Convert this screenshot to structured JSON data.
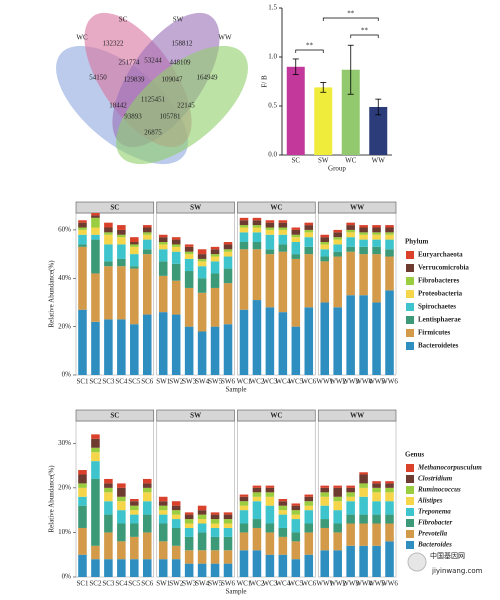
{
  "chart_data": [
    {
      "type": "venn",
      "sets": [
        {
          "name": "WC",
          "color": "#8fa9dd"
        },
        {
          "name": "SC",
          "color": "#d9739e"
        },
        {
          "name": "SW",
          "color": "#9a6fb8"
        },
        {
          "name": "WW",
          "color": "#8fcf6a"
        }
      ],
      "regions": [
        132322,
        158812,
        54150,
        251774,
        53244,
        448109,
        164949,
        129839,
        109047,
        18442,
        1125451,
        22145,
        93893,
        105781,
        26875
      ]
    },
    {
      "type": "bar",
      "categories": [
        "SC",
        "SW",
        "WC",
        "WW"
      ],
      "values": [
        0.9,
        0.69,
        0.87,
        0.49
      ],
      "errors": [
        0.08,
        0.05,
        0.25,
        0.08
      ],
      "colors": [
        "#c2399b",
        "#f0ec3c",
        "#92c86e",
        "#2c3b7a"
      ],
      "ylabel": "F/ B",
      "xlabel": "Group",
      "ylim": [
        0,
        1.5
      ],
      "yticks": [
        {
          "value": 0,
          "label": "0.0"
        },
        {
          "value": 0.5,
          "label": "0.5"
        },
        {
          "value": 1,
          "label": "1.0"
        },
        {
          "value": 1.5,
          "label": "1.5"
        }
      ],
      "annotations": [
        {
          "text": "**",
          "between": [
            0,
            1
          ]
        },
        {
          "text": "**",
          "between": [
            2,
            3
          ]
        },
        {
          "text": "**",
          "between": [
            1,
            3
          ]
        }
      ]
    },
    {
      "type": "stacked_bar",
      "ylabel": "Relative Abundance(%)",
      "xlabel": "Sample",
      "legend_title": "Phylum",
      "italic_legend": false,
      "facets": [
        {
          "title": "SC",
          "categories": [
            "SC1",
            "SC2",
            "SC3",
            "SC4",
            "SC5",
            "SC6"
          ]
        },
        {
          "title": "SW",
          "categories": [
            "SW1",
            "SW2",
            "SW3",
            "SW4",
            "SW5",
            "SW6"
          ]
        },
        {
          "title": "WC",
          "categories": [
            "WC1",
            "WC2",
            "WC3",
            "WC4",
            "WC5",
            "WC6"
          ]
        },
        {
          "title": "WW",
          "categories": [
            "WW1",
            "WW2",
            "WW3",
            "WW4",
            "WW5",
            "WW6"
          ]
        }
      ],
      "ylim": [
        0,
        67
      ],
      "yticks": [
        {
          "value": 0,
          "label": "0%"
        },
        {
          "value": 20,
          "label": "20%"
        },
        {
          "value": 40,
          "label": "40%"
        },
        {
          "value": 60,
          "label": "60%"
        }
      ],
      "series": [
        {
          "name": "Euryarchaeota",
          "color": "#d9412b",
          "values": [
            1,
            1,
            2,
            2,
            2,
            1,
            1,
            1,
            1,
            2,
            1,
            1,
            1,
            1,
            1,
            1,
            1,
            1,
            1,
            1,
            1,
            1,
            1,
            1
          ]
        },
        {
          "name": "Verrucomicrobia",
          "color": "#6e3b30",
          "values": [
            2,
            1,
            2,
            2,
            1,
            2,
            2,
            2,
            2,
            2,
            2,
            2,
            2,
            2,
            2,
            2,
            2,
            2,
            2,
            2,
            2,
            2,
            2,
            2
          ]
        },
        {
          "name": "Fibrobacteres",
          "color": "#9acd3f",
          "values": [
            1,
            4,
            1,
            1,
            1,
            1,
            1,
            1,
            1,
            1,
            1,
            1,
            1,
            1,
            1,
            1,
            1,
            1,
            1,
            1,
            1,
            1,
            1,
            1
          ]
        },
        {
          "name": "Proteobacteria",
          "color": "#f5d54a",
          "values": [
            2,
            3,
            4,
            3,
            3,
            2,
            2,
            2,
            2,
            2,
            2,
            2,
            2,
            2,
            2,
            2,
            2,
            2,
            2,
            2,
            2,
            2,
            2,
            2
          ]
        },
        {
          "name": "Spirochaetes",
          "color": "#3ec4cc",
          "values": [
            4,
            2,
            7,
            6,
            5,
            4,
            5,
            5,
            5,
            5,
            5,
            5,
            4,
            4,
            6,
            4,
            5,
            4,
            3,
            3,
            4,
            3,
            3,
            4
          ]
        },
        {
          "name": "Lentisphaerae",
          "color": "#3d9a78",
          "values": [
            1,
            14,
            2,
            3,
            1,
            2,
            6,
            7,
            7,
            6,
            6,
            6,
            3,
            3,
            2,
            3,
            2,
            3,
            2,
            2,
            2,
            3,
            3,
            3
          ]
        },
        {
          "name": "Firmicutes",
          "color": "#d39a4a",
          "values": [
            26,
            20,
            22,
            22,
            23,
            25,
            15,
            14,
            16,
            16,
            16,
            17,
            25,
            21,
            22,
            25,
            28,
            22,
            17,
            21,
            18,
            17,
            20,
            14
          ]
        },
        {
          "name": "Bacteroidetes",
          "color": "#2f8ec0",
          "values": [
            27,
            22,
            23,
            23,
            21,
            25,
            26,
            25,
            20,
            18,
            20,
            21,
            27,
            31,
            28,
            26,
            20,
            28,
            30,
            28,
            33,
            33,
            30,
            35
          ]
        }
      ]
    },
    {
      "type": "stacked_bar",
      "ylabel": "Relative Abundance(%)",
      "xlabel": "Sample",
      "legend_title": "Genus",
      "italic_legend": true,
      "facets": [
        {
          "title": "SC",
          "categories": [
            "SC1",
            "SC2",
            "SC3",
            "SC4",
            "SC5",
            "SC6"
          ]
        },
        {
          "title": "SW",
          "categories": [
            "SW1",
            "SW2",
            "SW3",
            "SW4",
            "SW5",
            "SW6"
          ]
        },
        {
          "title": "WC",
          "categories": [
            "WC1",
            "WC2",
            "WC3",
            "WC4",
            "WC5",
            "WC6"
          ]
        },
        {
          "title": "WW",
          "categories": [
            "WW1",
            "WW2",
            "WW3",
            "WW4",
            "WW5",
            "WW6"
          ]
        }
      ],
      "ylim": [
        0,
        35
      ],
      "yticks": [
        {
          "value": 0,
          "label": "0%"
        },
        {
          "value": 10,
          "label": "10%"
        },
        {
          "value": 20,
          "label": "20%"
        },
        {
          "value": 30,
          "label": "30%"
        }
      ],
      "series": [
        {
          "name": "Methanocorpusculum",
          "color": "#d9412b",
          "values": [
            1,
            1,
            1,
            1,
            0.5,
            1,
            1,
            1,
            0.5,
            1,
            0.5,
            0.5,
            0.5,
            0.5,
            0.5,
            0.5,
            0.5,
            0.5,
            0.5,
            0.5,
            0.5,
            0.5,
            0.5,
            0.5
          ]
        },
        {
          "name": "Clostridium",
          "color": "#6e3b30",
          "values": [
            2,
            2,
            1,
            2,
            1,
            1,
            1,
            1,
            1,
            1,
            1,
            1,
            1,
            1,
            1,
            1,
            1,
            1,
            1,
            2,
            1,
            2,
            1,
            1
          ]
        },
        {
          "name": "Ruminococcus",
          "color": "#9acd3f",
          "values": [
            1,
            1,
            1,
            1,
            1,
            1,
            1,
            1,
            1,
            1,
            1,
            1,
            1,
            1,
            1,
            1,
            1,
            1,
            1,
            1,
            1,
            1,
            1,
            1
          ]
        },
        {
          "name": "Alistipes",
          "color": "#f5d54a",
          "values": [
            2,
            2,
            2,
            2,
            1,
            2,
            1,
            1,
            1,
            1,
            1,
            1,
            1,
            1,
            2,
            1,
            1,
            1,
            2,
            2,
            1,
            2,
            2,
            2
          ]
        },
        {
          "name": "Treponema",
          "color": "#3ec4cc",
          "values": [
            2,
            4,
            3,
            3,
            2,
            3,
            2,
            2,
            2,
            2,
            2,
            2,
            3,
            4,
            4,
            3,
            3,
            3,
            3,
            3,
            3,
            4,
            3,
            3
          ]
        },
        {
          "name": "Fibrobacter",
          "color": "#3d9a78",
          "values": [
            5,
            15,
            4,
            4,
            3,
            4,
            4,
            4,
            3,
            4,
            3,
            3,
            2,
            2,
            2,
            2,
            2,
            2,
            2,
            2,
            2,
            2,
            2,
            2
          ]
        },
        {
          "name": "Prevotella",
          "color": "#d39a4a",
          "values": [
            6,
            3,
            6,
            4,
            5,
            6,
            4,
            3,
            3,
            3,
            3,
            3,
            4,
            5,
            5,
            4,
            4,
            5,
            5,
            4,
            5,
            5,
            5,
            4
          ]
        },
        {
          "name": "Bacteroides",
          "color": "#2f8ec0",
          "values": [
            5,
            4,
            4,
            4,
            4,
            4,
            4,
            4,
            3,
            3,
            3,
            3,
            6,
            6,
            5,
            5,
            4,
            5,
            6,
            6,
            7,
            7,
            7,
            8
          ]
        }
      ]
    }
  ],
  "watermark": {
    "text": "中国基因网",
    "url": "jiyinwang.com"
  }
}
